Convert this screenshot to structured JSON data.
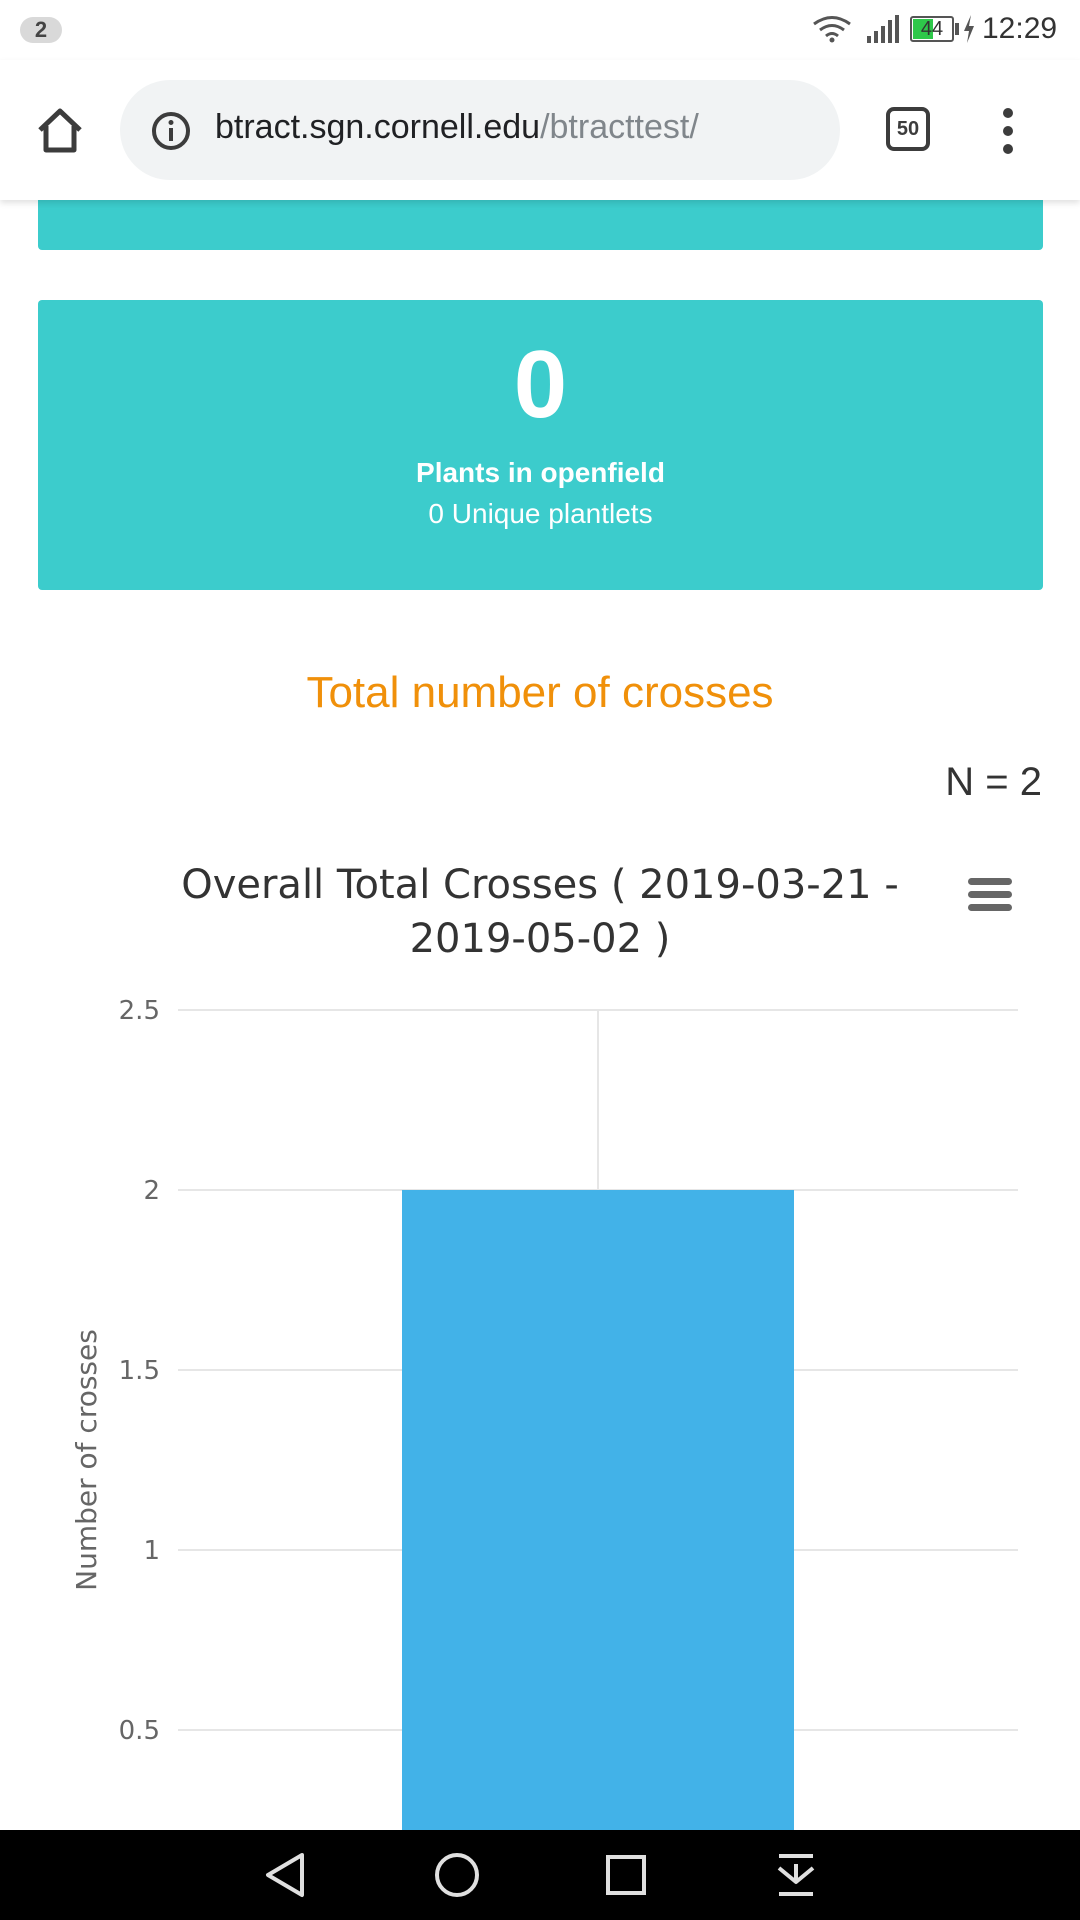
{
  "status_bar": {
    "notification_count": "2",
    "battery_level": "44",
    "time": "12:29",
    "icons": [
      "wifi-icon",
      "signal-icon",
      "battery-icon",
      "charging-icon"
    ]
  },
  "browser": {
    "url_domain": "btract.sgn.cornell.edu",
    "url_path": "/btracttest/",
    "tab_count": "50",
    "icons": [
      "home-icon",
      "info-icon",
      "tabs-icon",
      "overflow-menu-icon"
    ]
  },
  "stat_card": {
    "value": "0",
    "label": "Plants in openfield",
    "sublabel": "0 Unique plantlets"
  },
  "section": {
    "title": "Total number of crosses",
    "n_label": "N = 2"
  },
  "colors": {
    "card": "#3ccccc",
    "section_title": "#f0900a",
    "bar": "#42b2e8"
  },
  "chart_data": {
    "type": "bar",
    "title": "Overall Total Crosses ( 2019-03-21 - 2019-05-02 )",
    "title_lines": [
      "Overall Total Crosses ( 2019-03-21 -",
      "2019-05-02 )"
    ],
    "ylabel": "Number of crosses",
    "xlabel": "",
    "categories": [
      ""
    ],
    "values": [
      2
    ],
    "ylim": [
      0,
      2.5
    ],
    "yticks": [
      "0.5",
      "1",
      "1.5",
      "2",
      "2.5"
    ],
    "grid": true
  },
  "nav_bar": {
    "icons": [
      "back-icon",
      "home-circle-icon",
      "recents-icon",
      "download-icon"
    ]
  }
}
